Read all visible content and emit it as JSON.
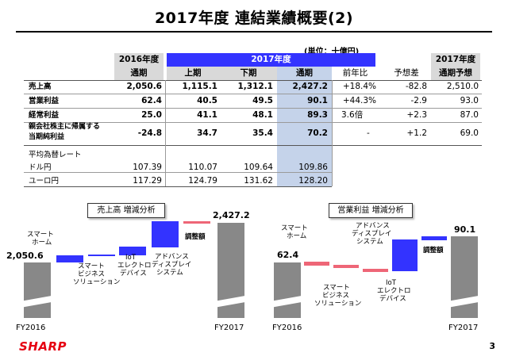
{
  "title": "2017年度 連結業績概要(2)",
  "unit": "(単位：十億円)",
  "header": {
    "fy2016": "2016年度",
    "fy2017": "2017年度",
    "fy2017_forecast": "2017年度",
    "full_year": "通期",
    "first_half": "上期",
    "second_half": "下期",
    "yoy": "前年比",
    "forecast_diff": "予想差",
    "forecast": "通期予想"
  },
  "rows": [
    {
      "label": "売上高",
      "fy2016": "2,050.6",
      "h1": "1,115.1",
      "h2": "1,312.1",
      "full": "2,427.2",
      "yoy": "+18.4%",
      "diff": "-82.8",
      "forecast": "2,510.0"
    },
    {
      "label": "営業利益",
      "fy2016": "62.4",
      "h1": "40.5",
      "h2": "49.5",
      "full": "90.1",
      "yoy": "+44.3%",
      "diff": "-2.9",
      "forecast": "93.0"
    },
    {
      "label": "経常利益",
      "fy2016": "25.0",
      "h1": "41.1",
      "h2": "48.1",
      "full": "89.3",
      "yoy": "3.6倍",
      "diff": "+2.3",
      "forecast": "87.0"
    },
    {
      "label1": "親会社株主に帰属する",
      "label2": "当期純利益",
      "fy2016": "-24.8",
      "h1": "34.7",
      "h2": "35.4",
      "full": "70.2",
      "yoy": "-",
      "diff": "+1.2",
      "forecast": "69.0"
    }
  ],
  "fx": {
    "title": "平均為替レート",
    "rows": [
      {
        "label": "ドル円",
        "fy2016": "107.39",
        "h1": "110.07",
        "h2": "109.64",
        "full": "109.86"
      },
      {
        "label": "ユーロ円",
        "fy2016": "117.29",
        "h1": "124.79",
        "h2": "131.62",
        "full": "128.20"
      }
    ]
  },
  "sales_chart": {
    "title": "売上高 増減分析",
    "start_value": "2,050.6",
    "end_value": "2,427.2",
    "x_start": "FY2016",
    "x_end": "FY2017",
    "labels": {
      "smart_home1": "スマート",
      "smart_home2": "ホーム",
      "smart_biz1": "スマート",
      "smart_biz2": "ビジネス",
      "smart_biz3": "ソリューション",
      "iot1": "IoT",
      "iot2": "エレクトロ",
      "iot3": "デバイス",
      "adv1": "アドバンス",
      "adv2": "ディスプレイ",
      "adv3": "システム",
      "adjust": "調整額"
    }
  },
  "op_chart": {
    "title": "営業利益 増減分析",
    "start_value": "62.4",
    "end_value": "90.1",
    "x_start": "FY2016",
    "x_end": "FY2017",
    "labels": {
      "smart_home1": "スマート",
      "smart_home2": "ホーム",
      "smart_biz1": "スマート",
      "smart_biz2": "ビジネス",
      "smart_biz3": "ソリューション",
      "iot1": "IoT",
      "iot2": "エレクトロ",
      "iot3": "デバイス",
      "adv1": "アドバンス",
      "adv2": "ディスプレイ",
      "adv3": "システム",
      "adjust": "調整額"
    }
  },
  "colors": {
    "accent": "#3333ff",
    "pink": "#ee6677",
    "gray": "#888888",
    "highlight": "#c5d3ea",
    "header_gray": "#d9d9d9"
  },
  "footer": {
    "logo": "SHARP",
    "page": "3"
  }
}
